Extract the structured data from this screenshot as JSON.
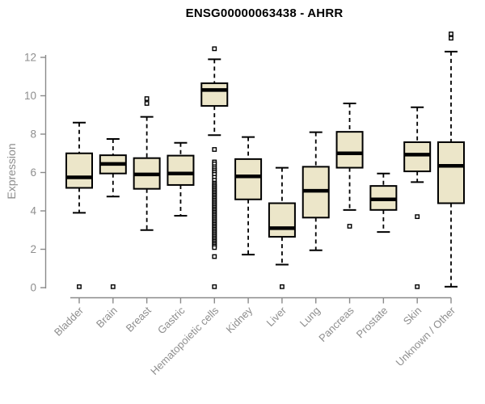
{
  "colors": {
    "background": "#ffffff",
    "box_fill": "#ece6c9",
    "box_stroke": "#000000",
    "median_color": "#000000",
    "whisker_color": "#000000",
    "outlier_stroke": "#000000",
    "outlier_fill": "#ffffff",
    "axis_line": "#8a8a8a",
    "axis_text": "#8e8e8e",
    "title_color": "#000000"
  },
  "chart_data": {
    "type": "boxplot",
    "title": "ENSG00000063438 - AHRR",
    "xlabel": "",
    "ylabel": "Expression",
    "ylim": [
      0,
      12
    ],
    "yticks": [
      0,
      2,
      4,
      6,
      8,
      10,
      12
    ],
    "grid": false,
    "legend": false,
    "x_label_rotation_deg": -45,
    "categories": [
      "Bladder",
      "Brain",
      "Breast",
      "Gastric",
      "Hematopoietic cells",
      "Kidney",
      "Liver",
      "Lung",
      "Pancreas",
      "Prostate",
      "Skin",
      "Unknown / Other"
    ],
    "series": [
      {
        "label": "Bladder",
        "low": 3.9,
        "q1": 5.2,
        "median": 5.75,
        "q3": 7.0,
        "high": 8.6,
        "outliers": [
          0.05
        ]
      },
      {
        "label": "Brain",
        "low": 4.75,
        "q1": 5.95,
        "median": 6.45,
        "q3": 6.9,
        "high": 7.75,
        "outliers": [
          0.05
        ]
      },
      {
        "label": "Breast",
        "low": 3.0,
        "q1": 5.15,
        "median": 5.9,
        "q3": 6.75,
        "high": 8.9,
        "outliers": [
          9.85,
          9.6
        ]
      },
      {
        "label": "Gastric",
        "low": 3.75,
        "q1": 5.35,
        "median": 5.95,
        "q3": 6.88,
        "high": 7.55,
        "outliers": []
      },
      {
        "label": "Hematopoietic cells",
        "low": 7.95,
        "q1": 9.47,
        "median": 10.3,
        "q3": 10.65,
        "high": 11.9,
        "outliers": [
          12.45,
          7.2,
          6.55,
          6.45,
          6.3,
          6.2,
          6.1,
          6.0,
          5.9,
          5.75,
          5.6,
          5.45,
          5.37,
          5.29,
          5.21,
          5.13,
          5.05,
          4.97,
          4.89,
          4.81,
          4.73,
          4.65,
          4.57,
          4.49,
          4.41,
          4.33,
          4.25,
          4.17,
          4.09,
          4.01,
          3.93,
          3.85,
          3.77,
          3.69,
          3.61,
          3.53,
          3.45,
          3.37,
          3.29,
          3.21,
          3.13,
          3.05,
          2.97,
          2.89,
          2.81,
          2.73,
          2.65,
          2.57,
          2.49,
          2.41,
          2.33,
          2.25,
          2.17,
          2.09,
          1.62,
          0.05
        ]
      },
      {
        "label": "Kidney",
        "low": 1.72,
        "q1": 4.6,
        "median": 5.8,
        "q3": 6.7,
        "high": 7.85,
        "outliers": []
      },
      {
        "label": "Liver",
        "low": 1.2,
        "q1": 2.65,
        "median": 3.1,
        "q3": 4.4,
        "high": 6.25,
        "outliers": [
          0.05
        ]
      },
      {
        "label": "Lung",
        "low": 1.95,
        "q1": 3.65,
        "median": 5.05,
        "q3": 6.3,
        "high": 8.1,
        "outliers": []
      },
      {
        "label": "Pancreas",
        "low": 4.05,
        "q1": 6.25,
        "median": 7.0,
        "q3": 8.12,
        "high": 9.6,
        "outliers": [
          3.2
        ]
      },
      {
        "label": "Prostate",
        "low": 2.9,
        "q1": 4.05,
        "median": 4.6,
        "q3": 5.3,
        "high": 5.95,
        "outliers": []
      },
      {
        "label": "Skin",
        "low": 5.5,
        "q1": 6.06,
        "median": 6.93,
        "q3": 7.58,
        "high": 9.4,
        "outliers": [
          3.7,
          0.05
        ]
      },
      {
        "label": "Unknown / Other",
        "low": 0.05,
        "q1": 4.4,
        "median": 6.35,
        "q3": 7.58,
        "high": 12.3,
        "outliers": [
          13.22,
          13.0
        ]
      }
    ]
  }
}
